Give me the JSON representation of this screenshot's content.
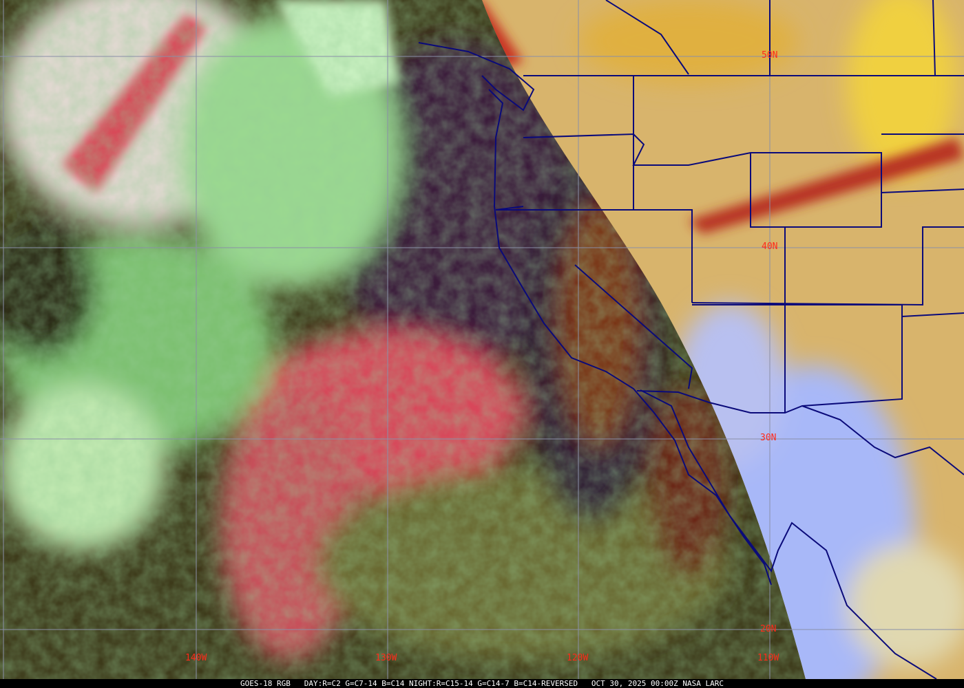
{
  "caption": "GOES-18 RGB   DAY:R=C2 G=C7-14 B=C14 NIGHT:R=C15-14 G=C14-7 B=C14-REVERSED   OCT 30, 2025 00:00Z NASA LARC",
  "latitude_labels": [
    "50N",
    "40N",
    "30N",
    "20N"
  ],
  "longitude_labels": [
    "140W",
    "130W",
    "120W",
    "110W"
  ],
  "colors": {
    "grid": "#8a8fa8",
    "boundaries": "#0a0a7a",
    "labels": "#ff2a1a",
    "day_land": "#d6b46a",
    "night_ocean": "#3a1f3a",
    "cloud_green": "#a8f0a0",
    "dust_pink": "#e04060",
    "clear_sky_blue": "#a8b8ff"
  }
}
